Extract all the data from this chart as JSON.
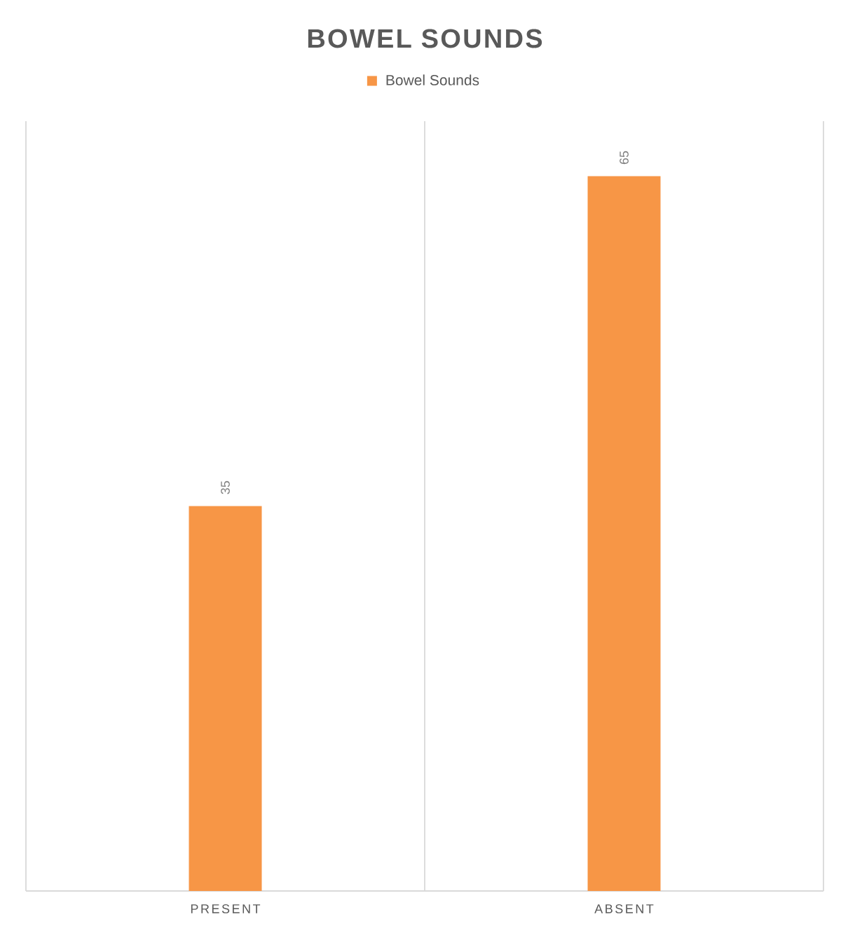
{
  "chart_data": {
    "type": "bar",
    "title": "BOWEL SOUNDS",
    "categories": [
      "PRESENT",
      "ABSENT"
    ],
    "series": [
      {
        "name": "Bowel Sounds",
        "color": "#f79646",
        "values": [
          35,
          65
        ]
      }
    ],
    "ylim": [
      0,
      70
    ],
    "data_labels": true,
    "legend": "top",
    "grid": "x",
    "tick_labels": "x"
  }
}
